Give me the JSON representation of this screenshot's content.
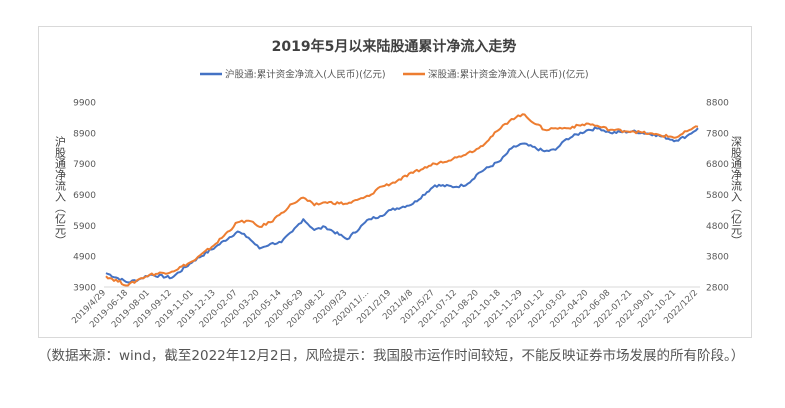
{
  "chart_data": {
    "type": "line",
    "title": "2019年5月以来陆股通累计净流入走势",
    "y_left_label": "沪股通净流入（亿元）",
    "y_right_label": "深股通净流入（亿元）",
    "y_left_range": [
      3900,
      9900
    ],
    "y_left_ticks": [
      "9900",
      "8900",
      "7900",
      "6900",
      "5900",
      "4900",
      "3900"
    ],
    "y_right_range": [
      2800,
      8800
    ],
    "y_right_ticks": [
      "8800",
      "7800",
      "6800",
      "5800",
      "4800",
      "3800",
      "2800"
    ],
    "x_ticks": [
      "2019/4/29",
      "2019-06-18",
      "2019-08-01",
      "2019-09-12",
      "2019-11-01",
      "2019-12-13",
      "2020-02-07",
      "2020-03-20",
      "2020-05-14",
      "2020-06-29",
      "2020-08-12",
      "2020/9/23",
      "2020/11/…",
      "2021/2/19",
      "2021/4/8",
      "2021/5/27",
      "2021-07-12",
      "2021-08-20",
      "2021-10-18",
      "2021-11-29",
      "2022-01-12",
      "2022-03-02",
      "2022-04-20",
      "2022-06-08",
      "2022-07-21",
      "2022-09-01",
      "2022-10-21",
      "2022/12/2"
    ],
    "legend_position": "top",
    "grid": false,
    "series": [
      {
        "name": "沪股通:累计资金净流入(人民币)(亿元)",
        "axis": "left",
        "color": "#4472C4",
        "x_index": [
          0,
          1,
          1.5,
          2,
          3,
          4,
          5,
          6,
          6.5,
          7,
          7.5,
          8,
          8.5,
          9,
          9.5,
          10,
          11,
          12,
          12.5,
          13,
          14,
          15,
          16,
          16.5,
          17,
          18,
          18.5,
          19,
          20,
          20.5,
          21,
          22,
          22.5,
          23,
          24,
          25,
          26,
          26.5,
          27
        ],
        "values": [
          4350,
          4050,
          4150,
          4300,
          4200,
          4750,
          5200,
          5700,
          5500,
          5150,
          5300,
          5350,
          5700,
          6100,
          5750,
          5850,
          5450,
          6100,
          6200,
          6400,
          6600,
          7200,
          7150,
          7250,
          7600,
          8000,
          8400,
          8550,
          8300,
          8350,
          8700,
          9000,
          9050,
          8900,
          8950,
          8850,
          8650,
          8800,
          9050
        ]
      },
      {
        "name": "深股通:累计资金净流入(人民币)(亿元)",
        "axis": "right",
        "color": "#ED7D31",
        "x_index": [
          0,
          1,
          1.5,
          2,
          3,
          4,
          5,
          6,
          6.5,
          7,
          7.5,
          8,
          8.5,
          9,
          9.5,
          10,
          11,
          12,
          12.5,
          13,
          14,
          15,
          16,
          16.5,
          17,
          18,
          18.5,
          19,
          20,
          20.5,
          21,
          22,
          22.5,
          23,
          24,
          25,
          26,
          26.5,
          27
        ],
        "values": [
          3150,
          2850,
          3050,
          3200,
          3300,
          3650,
          4200,
          4900,
          4950,
          4750,
          4900,
          5200,
          5500,
          5700,
          5450,
          5550,
          5500,
          5750,
          6050,
          6150,
          6500,
          6800,
          7000,
          7150,
          7300,
          7950,
          8250,
          8400,
          7900,
          7950,
          7950,
          8100,
          8000,
          7900,
          7850,
          7750,
          7650,
          7850,
          8000
        ]
      }
    ]
  },
  "footnote": "（数据来源：wind，截至2022年12月2日，风险提示：我国股市运作时间较短，不能反映证券市场发展的所有阶段。）"
}
